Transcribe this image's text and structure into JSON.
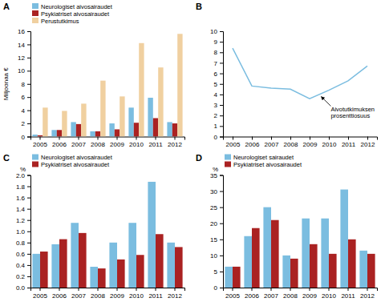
{
  "chart_data": [
    {
      "type": "bar",
      "title": "A",
      "categories": [
        "2005",
        "2006",
        "2007",
        "2008",
        "2009",
        "2010",
        "2011",
        "2012"
      ],
      "series": [
        {
          "name": "Neurologiset aivosairaudet",
          "color": "#7bbde0",
          "values": [
            0.3,
            1.0,
            2.2,
            0.8,
            2.0,
            4.4,
            5.9,
            2.2
          ]
        },
        {
          "name": "Psykiatriset aivosairaudet",
          "color": "#aa2222",
          "values": [
            0.2,
            1.0,
            1.9,
            0.8,
            1.1,
            2.1,
            2.8,
            2.0
          ]
        },
        {
          "name": "Perustutkimus",
          "color": "#f0d0a0",
          "values": [
            4.4,
            3.9,
            5.0,
            8.5,
            6.1,
            14.2,
            10.5,
            15.6
          ]
        }
      ],
      "ylabel": "Miljoonaa €",
      "ylim": [
        0,
        16
      ],
      "yticks": [
        0,
        2,
        4,
        6,
        8,
        10,
        12,
        14,
        16
      ],
      "legend": "upper left",
      "grid": false
    },
    {
      "type": "line",
      "title": "B",
      "x": [
        2005,
        2006,
        2007,
        2008,
        2009,
        2010,
        2011,
        2012
      ],
      "series": [
        {
          "color": "#7bbde0",
          "values": [
            8.4,
            4.8,
            4.6,
            4.5,
            3.6,
            4.4,
            5.3,
            6.7
          ]
        }
      ],
      "xlim": [
        2004.5,
        2012.5
      ],
      "xticks": [
        2005,
        2006,
        2007,
        2008,
        2009,
        2010,
        2011,
        2012
      ],
      "ylim": [
        0,
        10
      ],
      "yticks": [
        0,
        1,
        2,
        3,
        4,
        5,
        6,
        7,
        8,
        9,
        10
      ],
      "annotations": [
        {
          "text": "Aivotutkimuksen\nprosenttiosuus",
          "xy": [
            2009.6,
            3.8
          ],
          "xytext": [
            2010.1,
            2.9
          ]
        }
      ],
      "grid": false
    },
    {
      "type": "bar",
      "title": "C",
      "categories": [
        "2005",
        "2006",
        "2007",
        "2008",
        "2009",
        "2010",
        "2011",
        "2012"
      ],
      "series": [
        {
          "name": "Neurologiset aivosairaudet",
          "color": "#7bbde0",
          "values": [
            0.6,
            0.77,
            1.15,
            0.37,
            0.8,
            1.15,
            1.88,
            0.8
          ]
        },
        {
          "name": "Psykiatriset aivosairaudet",
          "color": "#aa2222",
          "values": [
            0.64,
            0.86,
            0.97,
            0.34,
            0.5,
            0.58,
            0.95,
            0.72
          ]
        }
      ],
      "ylabel": "%",
      "ylim": [
        0.0,
        2.0
      ],
      "yticks": [
        {
          "value": 0.0,
          "label": "0.0"
        },
        0.2,
        0.4,
        0.6,
        0.8,
        {
          "value": 1.0,
          "label": "1.0"
        },
        1.2,
        1.4,
        1.6,
        1.8,
        {
          "value": 2.0,
          "label": "2.0"
        }
      ],
      "legend": "upper left",
      "grid": false
    },
    {
      "type": "bar",
      "title": "D",
      "categories": [
        "2005",
        "2006",
        "2007",
        "2008",
        "2009",
        "2010",
        "2011",
        "2012"
      ],
      "series": [
        {
          "name": "Neurologiset sairaudet",
          "color": "#7bbde0",
          "values": [
            6.5,
            16.0,
            25.0,
            10.0,
            21.5,
            21.5,
            30.5,
            11.5
          ]
        },
        {
          "name": "Psykiatriset aivosairaudet",
          "color": "#aa2222",
          "values": [
            6.5,
            18.5,
            21.0,
            9.0,
            13.5,
            10.5,
            15.0,
            10.5
          ]
        }
      ],
      "ylabel": "%",
      "ylim": [
        0,
        35
      ],
      "yticks": [
        0,
        5,
        10,
        15,
        20,
        25,
        30,
        35
      ],
      "legend": "upper left",
      "grid": false
    }
  ]
}
